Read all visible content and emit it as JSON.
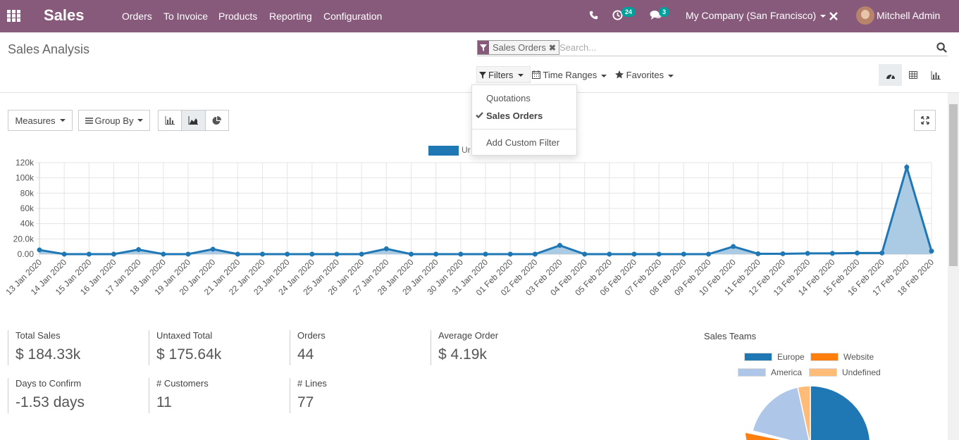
{
  "navbar": {
    "app_name": "Sales",
    "menu": [
      "Orders",
      "To Invoice",
      "Products",
      "Reporting",
      "Configuration"
    ],
    "activity_count": "24",
    "message_count": "3",
    "company": "My Company (San Francisco)",
    "user": "Mitchell Admin",
    "color": "#875A7B"
  },
  "control_panel": {
    "title": "Sales Analysis",
    "facet_label": "Sales Orders",
    "search_placeholder": "Search...",
    "filters_label": "Filters",
    "time_ranges_label": "Time Ranges",
    "favorites_label": "Favorites"
  },
  "filters_dropdown": {
    "items": [
      "Quotations",
      "Sales Orders"
    ],
    "checked_item": "Sales Orders",
    "custom_label": "Add Custom Filter"
  },
  "graph_toolbar": {
    "measures_label": "Measures",
    "group_by_label": "Group By"
  },
  "legend_label": "Ur",
  "chart_data": {
    "type": "area",
    "x": [
      "13 Jan 2020",
      "14 Jan 2020",
      "15 Jan 2020",
      "16 Jan 2020",
      "17 Jan 2020",
      "18 Jan 2020",
      "19 Jan 2020",
      "20 Jan 2020",
      "21 Jan 2020",
      "22 Jan 2020",
      "23 Jan 2020",
      "24 Jan 2020",
      "25 Jan 2020",
      "26 Jan 2020",
      "27 Jan 2020",
      "28 Jan 2020",
      "29 Jan 2020",
      "30 Jan 2020",
      "31 Jan 2020",
      "01 Feb 2020",
      "02 Feb 2020",
      "03 Feb 2020",
      "04 Feb 2020",
      "05 Feb 2020",
      "06 Feb 2020",
      "07 Feb 2020",
      "08 Feb 2020",
      "09 Feb 2020",
      "10 Feb 2020",
      "11 Feb 2020",
      "12 Feb 2020",
      "13 Feb 2020",
      "14 Feb 2020",
      "15 Feb 2020",
      "16 Feb 2020",
      "17 Feb 2020",
      "18 Feb 2020"
    ],
    "values": [
      5500,
      0,
      0,
      0,
      6000,
      0,
      0,
      6500,
      0,
      0,
      0,
      0,
      0,
      0,
      7000,
      0,
      0,
      0,
      0,
      0,
      0,
      11500,
      0,
      0,
      0,
      0,
      0,
      0,
      10000,
      500,
      500,
      1000,
      1000,
      1500,
      1500,
      114000,
      4000
    ],
    "y_ticks": [
      "0.00",
      "20.0k",
      "40k",
      "60k",
      "80k",
      "100k",
      "120k"
    ],
    "ylim": [
      0,
      120000
    ],
    "grid": true,
    "legend_position": "top",
    "line_color": "#1f77b4",
    "fill_color": "#a6c8e3"
  },
  "kpis": [
    {
      "label": "Total Sales",
      "value": "$ 184.33k"
    },
    {
      "label": "Untaxed Total",
      "value": "$ 175.64k"
    },
    {
      "label": "Orders",
      "value": "44"
    },
    {
      "label": "Average Order",
      "value": "$ 4.19k"
    },
    {
      "label": "Days to Confirm",
      "value": "-1.53 days"
    },
    {
      "label": "# Customers",
      "value": "11"
    },
    {
      "label": "# Lines",
      "value": "77"
    }
  ],
  "sales_teams": {
    "title": "Sales Teams",
    "legend": [
      {
        "label": "Europe",
        "color": "#1f77b4"
      },
      {
        "label": "Website",
        "color": "#ff7f0e"
      },
      {
        "label": "America",
        "color": "#aec7e8"
      },
      {
        "label": "Undefined",
        "color": "#ffbb78"
      }
    ]
  }
}
